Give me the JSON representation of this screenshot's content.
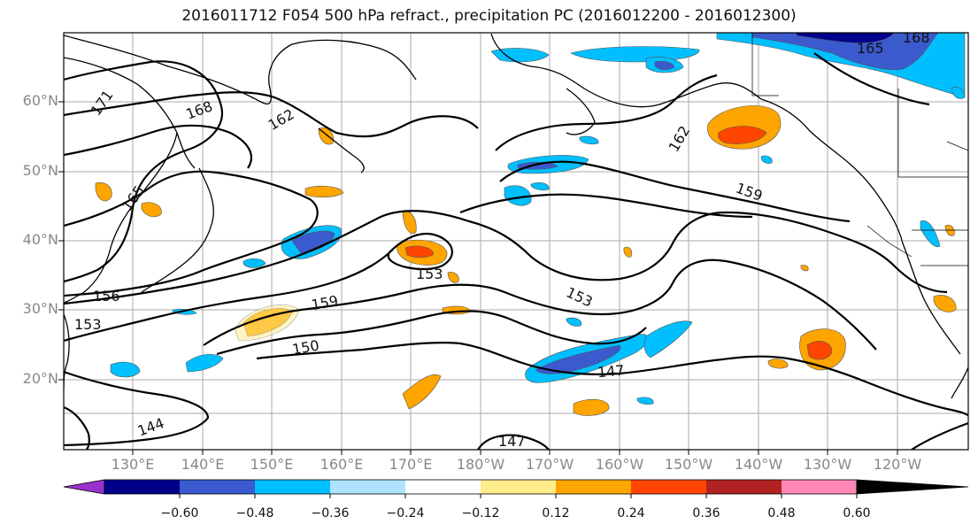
{
  "title": "2016011712 F054 500 hPa refract., precipitation PC (2016012200 - 2016012300)",
  "lat_labels": [
    "60°N",
    "50°N",
    "40°N",
    "30°N",
    "20°N"
  ],
  "lon_labels": [
    "130°E",
    "140°E",
    "150°E",
    "160°E",
    "170°E",
    "180°W",
    "170°W",
    "160°W",
    "150°W",
    "140°W",
    "130°W",
    "120°W"
  ],
  "contour_labels": [
    "171",
    "168",
    "162",
    "165",
    "162",
    "168",
    "165",
    "159",
    "156",
    "153",
    "153",
    "159",
    "153",
    "150",
    "147",
    "144",
    "147"
  ],
  "colorbar": {
    "ticks": [
      "−0.60",
      "−0.48",
      "−0.36",
      "−0.24",
      "−0.12",
      "0.12",
      "0.24",
      "0.36",
      "0.48",
      "0.60"
    ],
    "colors": [
      "#9932cc",
      "#00008b",
      "#3a5acd",
      "#00bfff",
      "#b0e2ff",
      "#ffffff",
      "#ffec8b",
      "#ffa500",
      "#ff4500",
      "#b22222",
      "#ff86b5"
    ]
  },
  "colors": {
    "positive_weak": "#ffec8b",
    "positive_mid": "#ffa500",
    "positive_strong": "#ff4500",
    "negative_weak": "#b0e2ff",
    "negative_mid": "#00bfff",
    "negative_strong": "#3a5acd",
    "negative_max": "#00008b",
    "contour": "#000000",
    "grid": "#aaaaaa"
  }
}
